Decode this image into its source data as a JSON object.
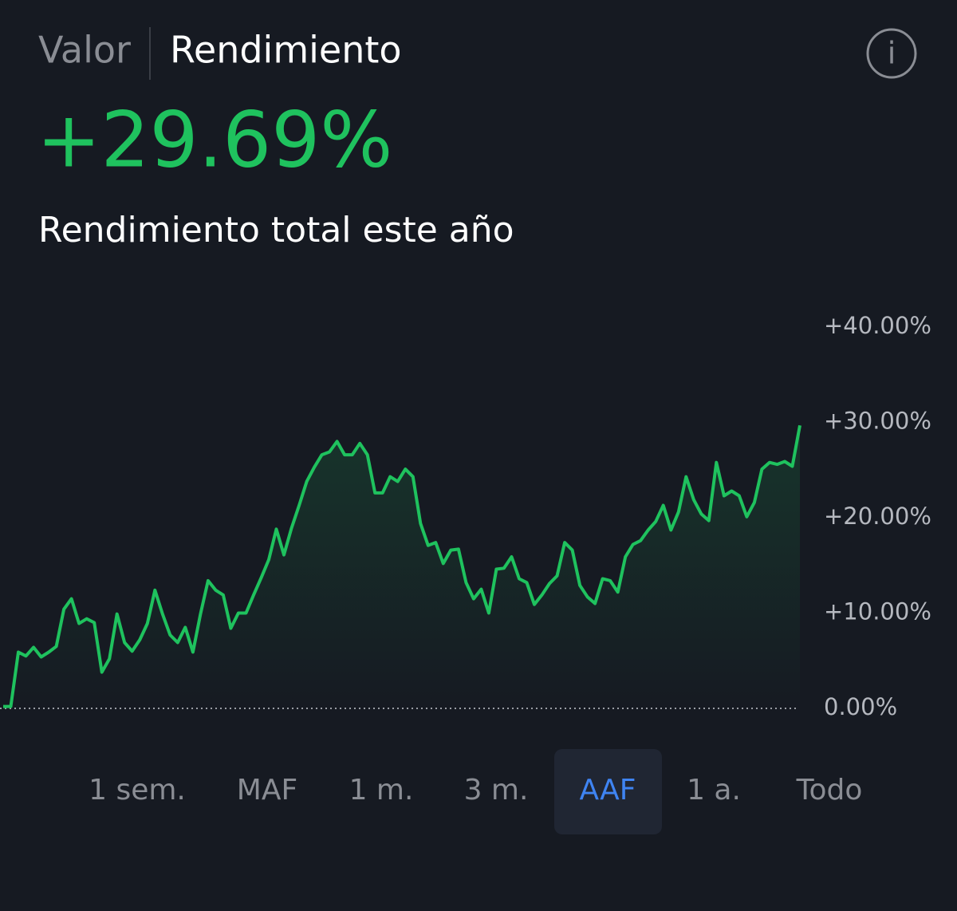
{
  "tabs": [
    "Valor",
    "Rendimiento"
  ],
  "headline": "+29.69%",
  "subtitle": "Rendimiento total este año",
  "info_icon": "i",
  "ranges": [
    "1 sem.",
    "MAF",
    "1 m.",
    "3 m.",
    "AAF",
    "1 a.",
    "Todo"
  ],
  "active_range": 4,
  "chart_data": {
    "type": "line",
    "color": "#1fc25e",
    "values": [
      0.2,
      0.2,
      5.9,
      5.5,
      6.4,
      5.4,
      5.9,
      6.5,
      10.4,
      11.5,
      8.9,
      9.4,
      9.0,
      3.8,
      5.2,
      9.9,
      6.9,
      6.0,
      7.2,
      8.9,
      12.4,
      9.9,
      7.7,
      6.9,
      8.5,
      5.9,
      9.9,
      13.4,
      12.4,
      11.9,
      8.4,
      10.0,
      10.0,
      11.9,
      13.7,
      15.6,
      18.8,
      16.1,
      18.9,
      21.3,
      23.8,
      25.3,
      26.6,
      26.9,
      28.0,
      26.6,
      26.6,
      27.8,
      26.6,
      22.6,
      22.6,
      24.3,
      23.8,
      25.1,
      24.3,
      19.4,
      17.1,
      17.4,
      15.2,
      16.6,
      16.7,
      13.2,
      11.5,
      12.5,
      10.0,
      14.6,
      14.7,
      15.9,
      13.6,
      13.2,
      10.9,
      11.9,
      13.1,
      13.9,
      17.4,
      16.6,
      12.9,
      11.7,
      11.0,
      13.6,
      13.4,
      12.2,
      15.9,
      17.2,
      17.6,
      18.7,
      19.6,
      21.3,
      18.7,
      20.6,
      24.3,
      21.9,
      20.4,
      19.7,
      25.8,
      22.3,
      22.8,
      22.3,
      20.1,
      21.6,
      25.1,
      25.8,
      25.6,
      25.9,
      25.4,
      29.69
    ],
    "ylim": [
      0,
      40
    ],
    "yticks": [
      {
        "value": 0,
        "label": "0.00%"
      },
      {
        "value": 10,
        "label": "+10.00%"
      },
      {
        "value": 20,
        "label": "+20.00%"
      },
      {
        "value": 30,
        "label": "+30.00%"
      },
      {
        "value": 40,
        "label": "+40.00%"
      }
    ]
  }
}
